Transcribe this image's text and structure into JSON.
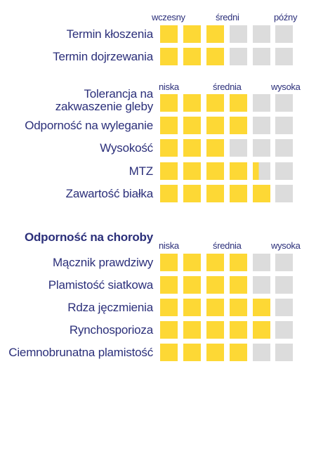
{
  "colors": {
    "filled": "#fdd835",
    "empty": "#dcdcdc",
    "text": "#2b2f7a"
  },
  "chart_data": [
    {
      "type": "table",
      "scale_labels": [
        "wczesny",
        "średni",
        "późny"
      ],
      "max": 6,
      "rows": [
        {
          "label": "Termin kłoszenia",
          "value": 3
        },
        {
          "label": "Termin dojrzewania",
          "value": 3
        }
      ]
    },
    {
      "type": "table",
      "scale_labels": [
        "niska",
        "średnia",
        "wysoka"
      ],
      "max": 6,
      "rows": [
        {
          "label": "Tolerancja na zakwaszenie gleby",
          "lines": [
            "Tolerancja na",
            "zakwaszenie gleby"
          ],
          "value": 4
        },
        {
          "label": "Odporność na wyleganie",
          "value": 4
        },
        {
          "label": "Wysokość",
          "value": 3
        },
        {
          "label": "MTZ",
          "value": 4.35
        },
        {
          "label": "Zawartość białka",
          "value": 5
        }
      ]
    },
    {
      "type": "table",
      "title": "Odporność na choroby",
      "scale_labels": [
        "niska",
        "średnia",
        "wysoka"
      ],
      "max": 6,
      "rows": [
        {
          "label": "Mącznik prawdziwy",
          "value": 4
        },
        {
          "label": "Plamistość siatkowa",
          "value": 4
        },
        {
          "label": "Rdza jęczmienia",
          "value": 5
        },
        {
          "label": "Rynchosporioza",
          "value": 5
        },
        {
          "label": "Ciemnobrunatna plamistość",
          "value": 4
        }
      ]
    }
  ]
}
